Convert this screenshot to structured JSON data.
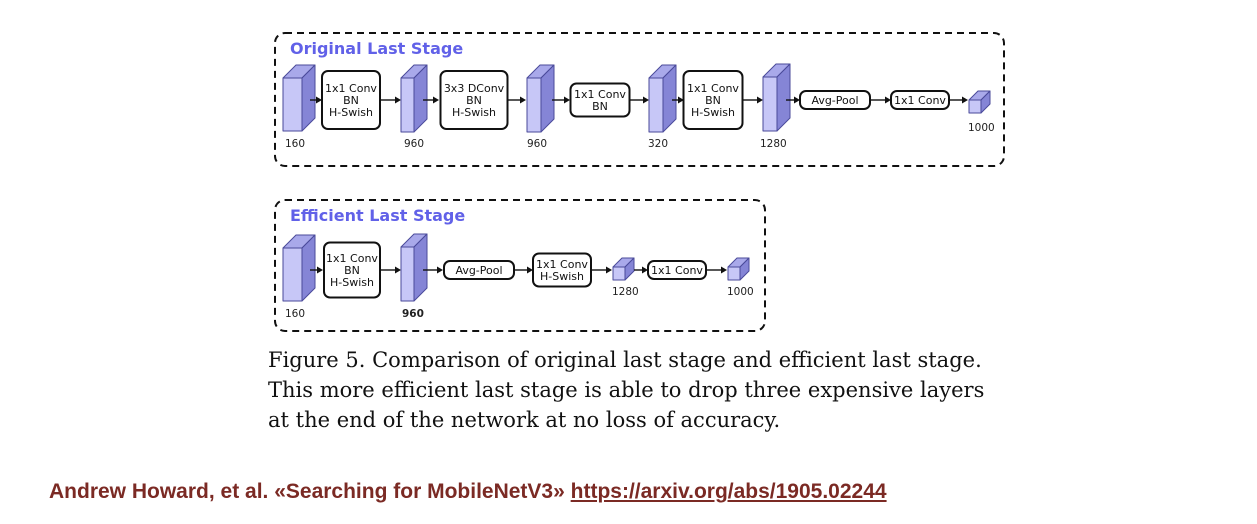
{
  "colors": {
    "accent": "#6161e8",
    "tensor_front": "#c7c7f7",
    "tensor_top": "#a9a9ea",
    "tensor_side": "#8585d6",
    "tensor_edge": "#4a4a9a",
    "citation": "#7b2a24"
  },
  "original": {
    "title": "Original Last Stage",
    "dims": [
      "160",
      "960",
      "960",
      "320",
      "1280",
      "1000"
    ],
    "ops": [
      {
        "lines": [
          "1x1 Conv",
          "BN",
          "H-Swish"
        ]
      },
      {
        "lines": [
          "3x3 DConv",
          "BN",
          "H-Swish"
        ]
      },
      {
        "lines": [
          "1x1 Conv",
          "BN"
        ]
      },
      {
        "lines": [
          "1x1 Conv",
          "BN",
          "H-Swish"
        ]
      },
      {
        "lines": [
          "Avg-Pool"
        ]
      },
      {
        "lines": [
          "1x1 Conv"
        ]
      }
    ]
  },
  "efficient": {
    "title": "Efficient Last Stage",
    "dims": [
      "160",
      "960",
      "1280",
      "1000"
    ],
    "ops": [
      {
        "lines": [
          "1x1 Conv",
          "BN",
          "H-Swish"
        ]
      },
      {
        "lines": [
          "Avg-Pool"
        ]
      },
      {
        "lines": [
          "1x1 Conv",
          "H-Swish"
        ]
      },
      {
        "lines": [
          "1x1 Conv"
        ]
      }
    ]
  },
  "caption": {
    "lines": [
      "Figure 5. Comparison of original last stage and efficient last stage.",
      "This more efficient last stage is able to drop three expensive layers",
      "at the end of the network at no loss of accuracy."
    ]
  },
  "citation": {
    "text": "Andrew Howard, et al. «Searching for MobileNetV3»",
    "link": "https://arxiv.org/abs/1905.02244"
  }
}
